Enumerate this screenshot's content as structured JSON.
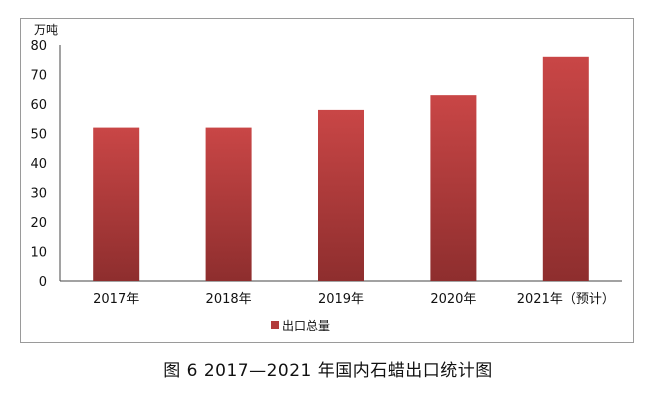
{
  "chart_data": {
    "type": "bar",
    "unit_label": "万吨",
    "categories": [
      "2017年",
      "2018年",
      "2019年",
      "2020年",
      "2021年（预计）"
    ],
    "series": [
      {
        "name": "出口总量",
        "values": [
          52,
          52,
          58,
          63,
          76
        ]
      }
    ],
    "ylim": [
      0,
      80
    ],
    "yticks": [
      "0",
      "10",
      "20",
      "30",
      "40",
      "50",
      "60",
      "70",
      "80"
    ],
    "legend_position": "bottom",
    "bar_color_top": "#c94646",
    "bar_color_bottom": "#8e2e2e"
  },
  "caption": "图 6  2017—2021 年国内石蜡出口统计图"
}
